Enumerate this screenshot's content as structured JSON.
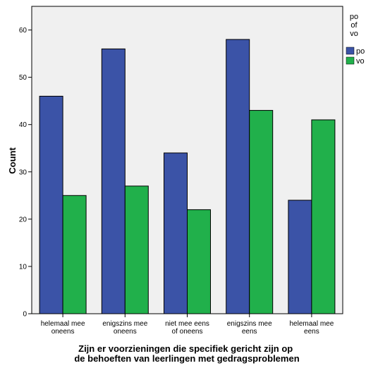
{
  "chart_data": {
    "type": "bar",
    "categories": [
      [
        "helemaal mee",
        "oneens"
      ],
      [
        "enigszins mee",
        "oneens"
      ],
      [
        "niet mee eens",
        "of oneens"
      ],
      [
        "enigszins mee",
        "eens"
      ],
      [
        "helemaal mee",
        "eens"
      ]
    ],
    "series": [
      {
        "name": "po",
        "color": "#3b53a7",
        "values": [
          46,
          56,
          34,
          58,
          24
        ]
      },
      {
        "name": "vo",
        "color": "#21b04b",
        "values": [
          25,
          27,
          22,
          43,
          41
        ]
      }
    ],
    "title": "",
    "xlabel": [
      "Zijn er voorzieningen die specifiek gericht zijn op",
      "de behoeften van leerlingen met gedragsproblemen"
    ],
    "ylabel": "Count",
    "ylim": [
      0,
      65
    ],
    "yticks": [
      0,
      10,
      20,
      30,
      40,
      50,
      60
    ],
    "legend": {
      "title": [
        "po",
        "of",
        "vo"
      ],
      "placement": "right"
    },
    "plot_background": "#f0f0f0",
    "grid": false
  }
}
